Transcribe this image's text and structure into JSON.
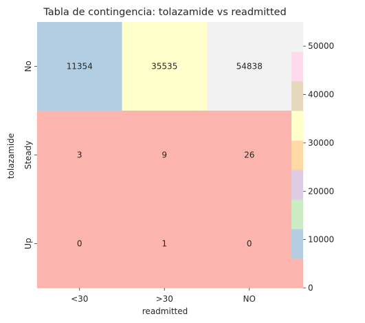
{
  "chart_data": {
    "type": "heatmap",
    "title": "Tabla de contingencia: tolazamide vs readmitted",
    "xlabel": "readmitted",
    "ylabel": "tolazamide",
    "x_categories": [
      "<30",
      ">30",
      "NO"
    ],
    "y_categories": [
      "No",
      "Steady",
      "Up"
    ],
    "values": [
      [
        11354,
        35535,
        54838
      ],
      [
        3,
        9,
        26
      ],
      [
        0,
        1,
        0
      ]
    ],
    "colorbar": {
      "range": [
        0,
        55000
      ],
      "ticks": [
        0,
        10000,
        20000,
        30000,
        40000,
        50000
      ],
      "tick_labels": [
        "0",
        "10000",
        "20000",
        "30000",
        "40000",
        "50000"
      ],
      "colors": [
        "#fbb4ae",
        "#b3cde3",
        "#ccebc5",
        "#decbe4",
        "#fed9a6",
        "#ffffcc",
        "#e5d8bd",
        "#fddaec",
        "#f2f2f2"
      ]
    },
    "legend": "colorbar-right",
    "grid": false
  }
}
